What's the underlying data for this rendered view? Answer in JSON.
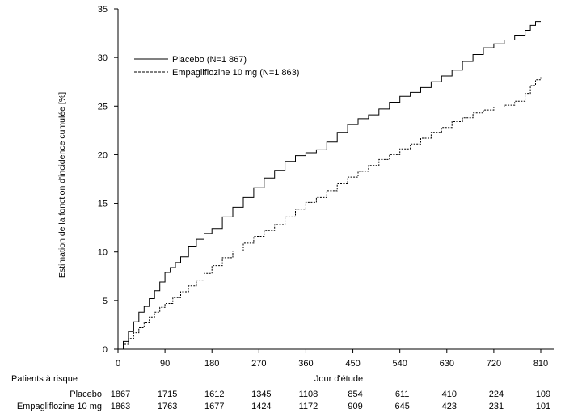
{
  "chart_data": {
    "type": "line",
    "ylabel": "Estimation de la fonction d'incidence cumulée [%]",
    "xlabel": "Jour d'étude",
    "xlim": [
      0,
      810
    ],
    "ylim": [
      0,
      35
    ],
    "x_ticks": [
      0,
      90,
      180,
      270,
      360,
      450,
      540,
      630,
      720,
      810
    ],
    "y_ticks": [
      0,
      5,
      10,
      15,
      20,
      25,
      30,
      35
    ],
    "grid": false,
    "legend_position": "top-left",
    "series": [
      {
        "name": "Placebo (N=1 867)",
        "style": "solid",
        "color": "#000000",
        "x": [
          0,
          10,
          20,
          30,
          40,
          50,
          60,
          70,
          80,
          90,
          100,
          110,
          120,
          135,
          150,
          165,
          180,
          200,
          220,
          240,
          260,
          280,
          300,
          320,
          340,
          360,
          380,
          400,
          420,
          440,
          460,
          480,
          500,
          520,
          540,
          560,
          580,
          600,
          620,
          640,
          660,
          680,
          700,
          720,
          740,
          760,
          780,
          790,
          800,
          810
        ],
        "y": [
          0,
          0.8,
          1.8,
          2.8,
          3.8,
          4.4,
          5.2,
          6.0,
          6.9,
          7.9,
          8.4,
          8.9,
          9.5,
          10.6,
          11.3,
          11.9,
          12.4,
          13.6,
          14.6,
          15.6,
          16.6,
          17.6,
          18.4,
          19.3,
          19.9,
          20.2,
          20.5,
          21.3,
          22.3,
          23.1,
          23.7,
          24.1,
          24.7,
          25.4,
          26.0,
          26.4,
          26.9,
          27.5,
          28.1,
          28.7,
          29.6,
          30.3,
          31.0,
          31.4,
          31.8,
          32.3,
          32.8,
          33.3,
          33.7,
          33.7
        ]
      },
      {
        "name": "Empagliflozine 10 mg (N=1 863)",
        "style": "dashed",
        "color": "#000000",
        "x": [
          0,
          10,
          20,
          30,
          40,
          50,
          60,
          70,
          80,
          90,
          105,
          120,
          135,
          150,
          165,
          180,
          200,
          220,
          240,
          260,
          280,
          300,
          320,
          340,
          360,
          380,
          400,
          420,
          440,
          460,
          480,
          500,
          520,
          540,
          560,
          580,
          600,
          620,
          640,
          660,
          680,
          700,
          720,
          740,
          760,
          780,
          790,
          800,
          810
        ],
        "y": [
          0,
          0.5,
          1.1,
          1.7,
          2.2,
          2.7,
          3.3,
          3.8,
          4.3,
          4.7,
          5.3,
          5.9,
          6.5,
          7.1,
          7.8,
          8.6,
          9.4,
          10.1,
          10.9,
          11.6,
          12.2,
          12.8,
          13.6,
          14.4,
          15.1,
          15.6,
          16.3,
          17.0,
          17.7,
          18.3,
          18.9,
          19.5,
          20.0,
          20.6,
          21.1,
          21.7,
          22.3,
          22.8,
          23.4,
          23.8,
          24.3,
          24.6,
          24.9,
          25.1,
          25.5,
          26.3,
          27.1,
          27.7,
          28.0
        ]
      }
    ]
  },
  "risk_table": {
    "title": "Patients à risque",
    "rows": [
      {
        "label": "Placebo",
        "values": [
          "1867",
          "1715",
          "1612",
          "1345",
          "1108",
          "854",
          "611",
          "410",
          "224",
          "109"
        ]
      },
      {
        "label": "Empagliflozine 10 mg",
        "values": [
          "1863",
          "1763",
          "1677",
          "1424",
          "1172",
          "909",
          "645",
          "423",
          "231",
          "101"
        ]
      }
    ]
  }
}
